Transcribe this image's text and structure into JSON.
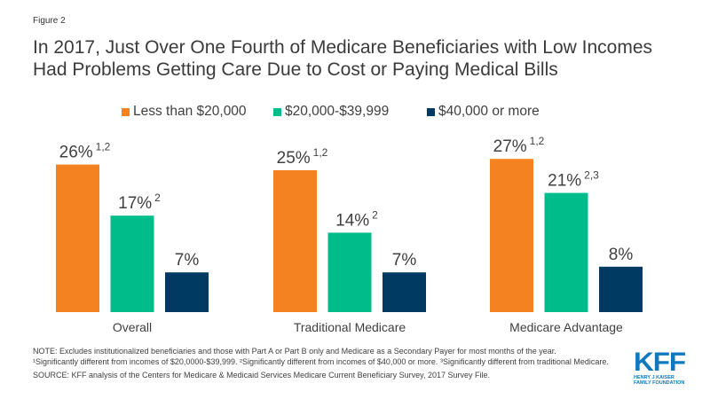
{
  "figure_label": "Figure 2",
  "title": "In 2017, Just Over One Fourth of Medicare Beneficiaries with Low Incomes Had Problems Getting Care Due to Cost or Paying Medical Bills",
  "chart_data": {
    "type": "bar",
    "title": "In 2017, Just Over One Fourth of Medicare Beneficiaries with Low Incomes Had Problems Getting Care Due to Cost or Paying Medical Bills",
    "xlabel": "",
    "ylabel": "",
    "ylim": [
      0,
      27
    ],
    "grid": false,
    "legend_position": "top",
    "categories": [
      "Overall",
      "Traditional Medicare",
      "Medicare Advantage"
    ],
    "series": [
      {
        "name": "Less than $20,000",
        "color": "#f58220",
        "values": [
          26,
          25,
          27
        ],
        "labels": [
          "26%",
          "25%",
          "27%"
        ],
        "superscripts": [
          "1,2",
          "1,2",
          "1,2"
        ]
      },
      {
        "name": "$20,000-$39,999",
        "color": "#00bc8a",
        "values": [
          17,
          14,
          21
        ],
        "labels": [
          "17%",
          "14%",
          "21%"
        ],
        "superscripts": [
          "2",
          "2",
          "2,3"
        ]
      },
      {
        "name": "$40,000 or more",
        "color": "#003a63",
        "values": [
          7,
          7,
          8
        ],
        "labels": [
          "7%",
          "7%",
          "8%"
        ],
        "superscripts": [
          "",
          "",
          ""
        ]
      }
    ]
  },
  "notes": {
    "note": "NOTE: Excludes institutionalized beneficiaries and those with Part A or Part B only and Medicare as a Secondary Payer for most months of the year.",
    "footnote_1": "¹Significantly different from incomes of $20,0000-$39,999.",
    "footnote_2": "²Significantly different from incomes of $40,000 or more.",
    "footnote_3": "³Significantly different from traditional Medicare.",
    "source": "SOURCE: KFF analysis of the Centers for Medicare & Medicaid Services Medicare Current Beneficiary Survey, 2017 Survey File."
  },
  "logo": {
    "mark": "KFF",
    "line1": "HENRY J KAISER",
    "line2": "FAMILY FOUNDATION",
    "color": "#0f78be"
  }
}
